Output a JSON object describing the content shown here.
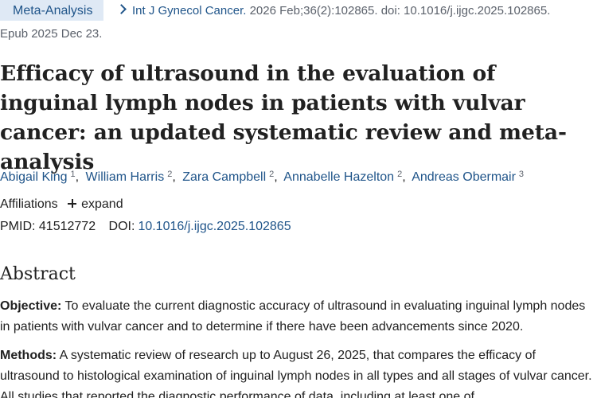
{
  "publication_type": "Meta-Analysis",
  "citation": {
    "journal": "Int J Gynecol Cancer.",
    "details": "2026 Feb;36(2):102865. doi: 10.1016/j.ijgc.2025.102865.",
    "epub": "Epub 2025 Dec 23."
  },
  "title": "Efficacy of ultrasound in the evaluation of inguinal lymph nodes in patients with vulvar cancer: an updated systematic review and meta-analysis",
  "authors": [
    {
      "name": "Abigail King",
      "affil": "1"
    },
    {
      "name": "William Harris",
      "affil": "2"
    },
    {
      "name": "Zara Campbell",
      "affil": "2"
    },
    {
      "name": "Annabelle Hazelton",
      "affil": "2"
    },
    {
      "name": "Andreas Obermair",
      "affil": "3"
    }
  ],
  "affiliations": {
    "label": "Affiliations",
    "expand_label": "expand"
  },
  "identifiers": {
    "pmid_label": "PMID:",
    "pmid": "41512772",
    "doi_label": "DOI:",
    "doi": "10.1016/j.ijgc.2025.102865"
  },
  "abstract": {
    "heading": "Abstract",
    "objective_label": "Objective:",
    "objective_text": " To evaluate the current diagnostic accuracy of ultrasound in evaluating inguinal lymph nodes in patients with vulvar cancer and to determine if there have been advancements since 2020.",
    "methods_label": "Methods:",
    "methods_text": " A systematic review of research up to August 26, 2025, that compares the efficacy of ultrasound to histological examination of inguinal lymph nodes in all types and all stages of vulvar cancer. All studies that reported the diagnostic performance of data, including at least one of"
  },
  "colors": {
    "link": "#20558a",
    "badge_bg": "#dfe9f5",
    "text": "#212121",
    "muted": "#5b616b"
  }
}
